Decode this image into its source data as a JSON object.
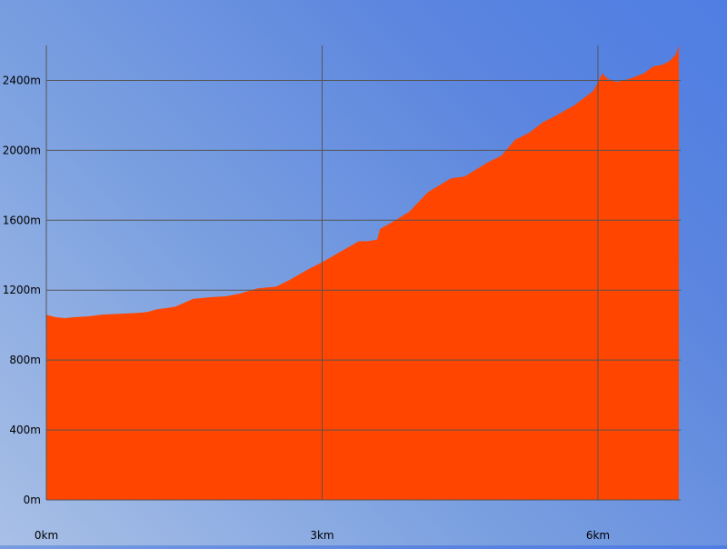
{
  "chart_data": {
    "type": "area",
    "title": "",
    "xlabel": "",
    "ylabel": "",
    "xlim": [
      0,
      6.9
    ],
    "ylim": [
      0,
      2600
    ],
    "grid": true,
    "colors": {
      "fill": "#ff4500",
      "grid": "#555555"
    },
    "x_ticks": [
      {
        "value": 0,
        "label": "0km"
      },
      {
        "value": 3,
        "label": "3km"
      },
      {
        "value": 6,
        "label": "6km"
      }
    ],
    "y_ticks": [
      {
        "value": 0,
        "label": "0m"
      },
      {
        "value": 400,
        "label": "400m"
      },
      {
        "value": 800,
        "label": "800m"
      },
      {
        "value": 1200,
        "label": "1200m"
      },
      {
        "value": 1600,
        "label": "1600m"
      },
      {
        "value": 2000,
        "label": "2000m"
      },
      {
        "value": 2400,
        "label": "2400m"
      }
    ],
    "series": [
      {
        "x": [
          0,
          0.1,
          0.2,
          0.3,
          0.45,
          0.6,
          0.8,
          1.0,
          1.1,
          1.2,
          1.4,
          1.6,
          1.8,
          1.95,
          2.1,
          2.3,
          2.5,
          2.65,
          2.85,
          3.0,
          3.2,
          3.4,
          3.5,
          3.6,
          3.63,
          3.8,
          3.95,
          4.15,
          4.4,
          4.55,
          4.8,
          4.95,
          5.1,
          5.25,
          5.4,
          5.55,
          5.75,
          5.95,
          6.05,
          6.1,
          6.2,
          6.35,
          6.5,
          6.6,
          6.7,
          6.78,
          6.85,
          6.88
        ],
        "y": [
          1060,
          1045,
          1040,
          1045,
          1050,
          1060,
          1065,
          1070,
          1075,
          1090,
          1105,
          1150,
          1160,
          1165,
          1180,
          1210,
          1220,
          1260,
          1320,
          1360,
          1420,
          1480,
          1480,
          1490,
          1550,
          1600,
          1650,
          1760,
          1840,
          1850,
          1930,
          1970,
          2060,
          2100,
          2160,
          2200,
          2260,
          2340,
          2440,
          2410,
          2390,
          2410,
          2440,
          2480,
          2490,
          2510,
          2550,
          2600
        ]
      }
    ]
  }
}
